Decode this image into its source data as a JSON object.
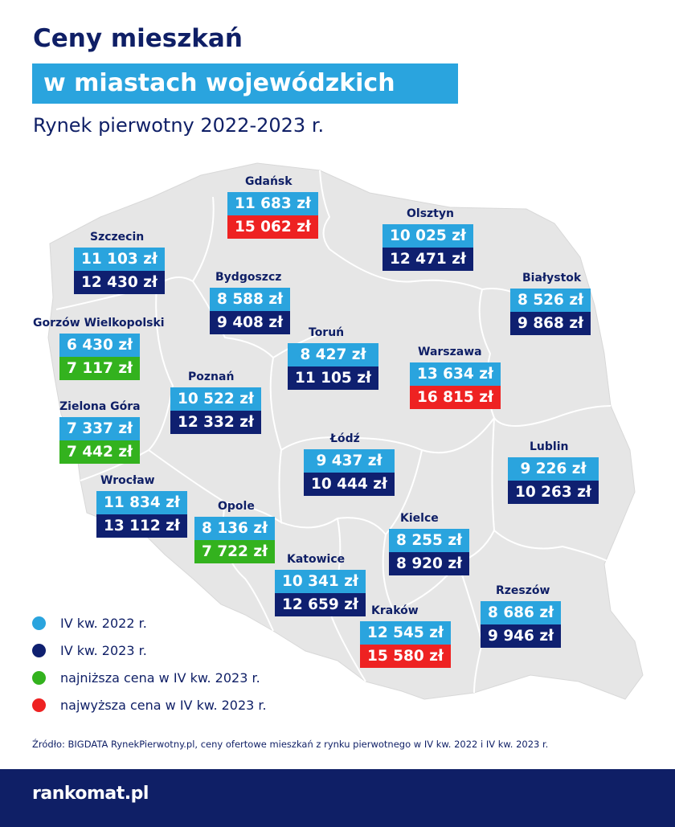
{
  "header": {
    "title_line1": "Ceny mieszkań",
    "title_line2": "w miastach wojewódzkich",
    "subtitle": "Rynek pierwotny 2022-2023 r."
  },
  "colors": {
    "q4_2022": "#2aa4de",
    "q4_2023": "#0f2070",
    "lowest": "#33b21e",
    "highest": "#ee2222",
    "map_fill": "#e6e6e6",
    "border": "#ffffff",
    "navy": "#0f1f66"
  },
  "cities": [
    {
      "name": "Gdańsk",
      "price_2022": "11 683 zł",
      "price_2023": "15 062 zł",
      "status_2023": "highest"
    },
    {
      "name": "Szczecin",
      "price_2022": "11 103 zł",
      "price_2023": "12 430 zł",
      "status_2023": "normal"
    },
    {
      "name": "Olsztyn",
      "price_2022": "10 025 zł",
      "price_2023": "12 471 zł",
      "status_2023": "normal"
    },
    {
      "name": "Bydgoszcz",
      "price_2022": "8 588 zł",
      "price_2023": "9 408 zł",
      "status_2023": "normal"
    },
    {
      "name": "Białystok",
      "price_2022": "8 526 zł",
      "price_2023": "9 868 zł",
      "status_2023": "normal"
    },
    {
      "name": "Gorzów Wielkopolski",
      "price_2022": "6 430 zł",
      "price_2023": "7 117 zł",
      "status_2023": "lowest"
    },
    {
      "name": "Toruń",
      "price_2022": "8 427 zł",
      "price_2023": "11 105 zł",
      "status_2023": "normal"
    },
    {
      "name": "Warszawa",
      "price_2022": "13 634 zł",
      "price_2023": "16 815 zł",
      "status_2023": "highest"
    },
    {
      "name": "Poznań",
      "price_2022": "10 522 zł",
      "price_2023": "12 332 zł",
      "status_2023": "normal"
    },
    {
      "name": "Zielona Góra",
      "price_2022": "7 337 zł",
      "price_2023": "7 442 zł",
      "status_2023": "lowest"
    },
    {
      "name": "Łódź",
      "price_2022": "9 437 zł",
      "price_2023": "10 444 zł",
      "status_2023": "normal"
    },
    {
      "name": "Lublin",
      "price_2022": "9 226 zł",
      "price_2023": "10 263 zł",
      "status_2023": "normal"
    },
    {
      "name": "Wrocław",
      "price_2022": "11 834 zł",
      "price_2023": "13 112 zł",
      "status_2023": "normal"
    },
    {
      "name": "Opole",
      "price_2022": "8 136 zł",
      "price_2023": "7 722 zł",
      "status_2023": "lowest"
    },
    {
      "name": "Kielce",
      "price_2022": "8 255 zł",
      "price_2023": "8 920 zł",
      "status_2023": "normal"
    },
    {
      "name": "Katowice",
      "price_2022": "10 341 zł",
      "price_2023": "12 659 zł",
      "status_2023": "normal"
    },
    {
      "name": "Kraków",
      "price_2022": "12 545 zł",
      "price_2023": "15 580 zł",
      "status_2023": "highest"
    },
    {
      "name": "Rzeszów",
      "price_2022": "8 686 zł",
      "price_2023": "9 946 zł",
      "status_2023": "normal"
    }
  ],
  "legend": [
    {
      "label": "IV kw. 2022 r.",
      "color": "#2aa4de"
    },
    {
      "label": "IV kw. 2023 r.",
      "color": "#0f2070"
    },
    {
      "label": "najniższa cena w IV kw. 2023 r.",
      "color": "#33b21e"
    },
    {
      "label": "najwyższa cena w IV kw. 2023 r.",
      "color": "#ee2222"
    }
  ],
  "source": "Źródło: BIGDATA RynekPierwotny.pl, ceny ofertowe mieszkań z rynku pierwotnego w IV kw. 2022 i IV kw. 2023 r.",
  "footer": {
    "logo": "rankomat.pl"
  }
}
